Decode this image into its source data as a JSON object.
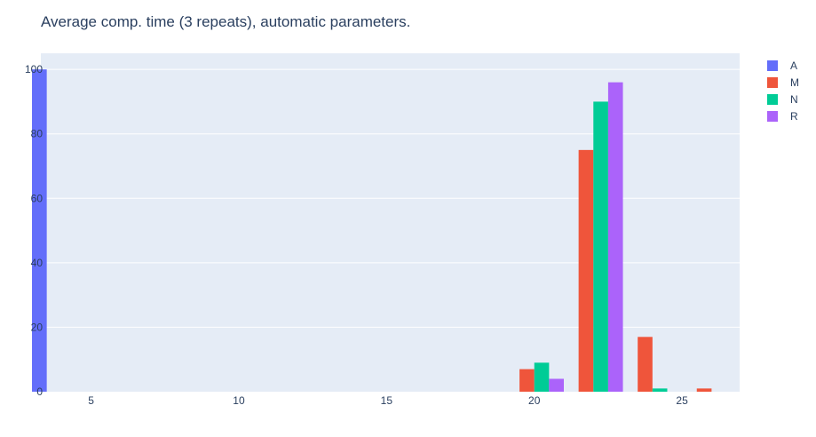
{
  "chart_data": {
    "type": "bar",
    "title": "Average comp. time (3 repeats), automatic parameters.",
    "xlabel": "",
    "ylabel": "",
    "xlim": [
      3.3,
      26.95
    ],
    "ylim": [
      0,
      105
    ],
    "x_ticks": [
      5,
      10,
      15,
      20,
      25
    ],
    "y_ticks": [
      0,
      20,
      40,
      60,
      80,
      100
    ],
    "grid": true,
    "legend_position": "top-right",
    "bin_width": 2,
    "series": [
      {
        "name": "A",
        "color": "#636efa",
        "x": [
          4
        ],
        "values": [
          100
        ]
      },
      {
        "name": "M",
        "color": "#ef553b",
        "x": [
          20,
          22,
          24,
          26
        ],
        "values": [
          7,
          75,
          17,
          1
        ]
      },
      {
        "name": "N",
        "color": "#00cc96",
        "x": [
          20,
          22,
          24
        ],
        "values": [
          9,
          90,
          1
        ]
      },
      {
        "name": "R",
        "color": "#ab63fa",
        "x": [
          20,
          22
        ],
        "values": [
          4,
          96
        ]
      }
    ]
  }
}
